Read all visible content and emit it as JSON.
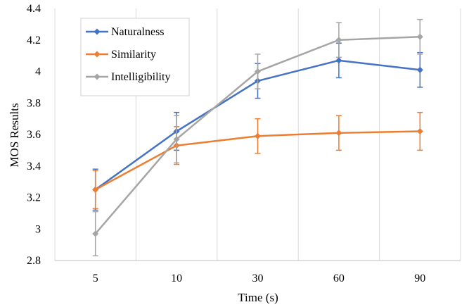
{
  "chart_data": {
    "type": "line",
    "title": "",
    "xlabel": "Time (s)",
    "ylabel": "MOS Results",
    "categories": [
      "5",
      "10",
      "30",
      "60",
      "90"
    ],
    "ylim": [
      2.8,
      4.4
    ],
    "yticks": [
      "2.8",
      "3",
      "3.2",
      "3.4",
      "3.6",
      "3.8",
      "4",
      "4.2",
      "4.4"
    ],
    "grid": "vertical",
    "legend_position": "top-left",
    "series": [
      {
        "name": "Naturalness",
        "color": "#4472C4",
        "values": [
          3.25,
          3.62,
          3.94,
          4.07,
          4.01
        ],
        "errors": [
          0.13,
          0.12,
          0.11,
          0.11,
          0.11
        ]
      },
      {
        "name": "Similarity",
        "color": "#ED7D31",
        "values": [
          3.25,
          3.53,
          3.59,
          3.61,
          3.62
        ],
        "errors": [
          0.12,
          0.12,
          0.11,
          0.11,
          0.12
        ]
      },
      {
        "name": "Intelligibility",
        "color": "#A5A5A5",
        "values": [
          2.97,
          3.57,
          4.0,
          4.2,
          4.22
        ],
        "errors": [
          0.14,
          0.15,
          0.11,
          0.11,
          0.11
        ]
      }
    ]
  }
}
